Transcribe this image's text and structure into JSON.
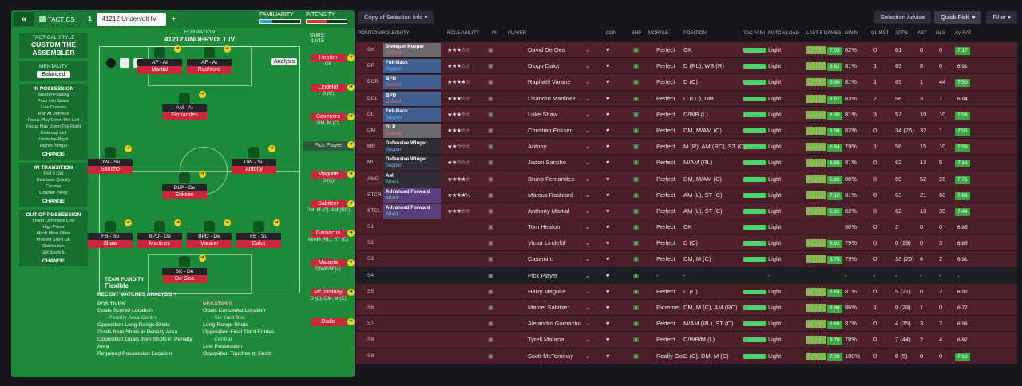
{
  "left": {
    "tactics_label": "TACTICS",
    "slot_number": "1",
    "formation_name_short": "41212 Undervolt IV",
    "familiarity_label": "FAMILIARITY",
    "intensity_label": "INTENSITY",
    "familiarity_level": 0.3,
    "intensity_level": 0.5,
    "tactical_style_label": "TACTICAL STYLE",
    "tactical_style_value": "CUSTOM THE ASSEMBLER",
    "mentality_label": "MENTALITY",
    "mentality_value": "Balanced",
    "in_possession_label": "IN POSSESSION",
    "in_possession_items": [
      "Shorter Passing",
      "Pass Into Space",
      "Low Crosses",
      "Run At Defence",
      "Focus Play Down The Left",
      "Focus Play Down The Right",
      "Underlap Left",
      "Underlap Right",
      "Higher Tempo"
    ],
    "in_transition_label": "IN TRANSITION",
    "in_transition_items": [
      "Roll It Out",
      "Distribute Quickly",
      "Counter",
      "Counter-Press"
    ],
    "out_possession_label": "OUT OF POSSESSION",
    "out_possession_items": [
      "Lower Defensive Line",
      "High Press",
      "Much More Often",
      "Prevent Short GK",
      "Distribution",
      "Get Stuck In"
    ],
    "change_label": "CHANGE",
    "formation_label": "FORMATION",
    "formation_name": "41212 UNDERVOLT IV",
    "subs_label": "SUBS:",
    "subs_value": "14/15",
    "analysis_label": "Analysis",
    "team_fluidity_label": "TEAM FLUIDITY",
    "team_fluidity_value": "Flexible",
    "recent_label": "RECENT MATCHES ANALYSIS ›",
    "positives_label": "POSITIVES",
    "positives": [
      "Goals Scored Location",
      "- Penalty Area Centre",
      "Opposition Long-Range Shots",
      "Goals from Shots in Penalty Area",
      "Opposition Goals from Shots in Penalty Area",
      "Regained Possession Location"
    ],
    "negatives_label": "NEGATIVES",
    "negatives": [
      "Goals Conceded Location",
      "- Six Yard Box",
      "Long-Range Shots",
      "Opposition Final Third Entries",
      "- Central",
      "Lost Possession",
      "Opposition Touches to Shots"
    ],
    "players": [
      {
        "role": "AF - At",
        "name": "Martial"
      },
      {
        "role": "AF - At",
        "name": "Rashford"
      },
      {
        "role": "AM - At",
        "name": "Fernandes"
      },
      {
        "role": "DW - Su",
        "name": "Sancho"
      },
      {
        "role": "DW - Su",
        "name": "Antony"
      },
      {
        "role": "DLP - De",
        "name": "Eriksen"
      },
      {
        "role": "FB - Su",
        "name": "Shaw"
      },
      {
        "role": "BPD - De",
        "name": "Martinez"
      },
      {
        "role": "BPD - De",
        "name": "Varane"
      },
      {
        "role": "FB - Su",
        "name": "Dalot"
      },
      {
        "role": "SK - De",
        "name": "De Gea"
      }
    ],
    "subs": [
      {
        "name": "Heaton",
        "pos": "GK"
      },
      {
        "name": "Lindelöf",
        "pos": "D (C)"
      },
      {
        "name": "Casemiro",
        "pos": "DM, M (C)"
      },
      {
        "name": "Pick Player",
        "pos": ""
      },
      {
        "name": "Maguire",
        "pos": "D (C)"
      },
      {
        "name": "Sabitzer",
        "pos": "DM, M (C), AM (RC)"
      },
      {
        "name": "Garnacho",
        "pos": "M/AM (RL), ST (C)"
      },
      {
        "name": "Malacia",
        "pos": "D/WB/M (L)"
      },
      {
        "name": "McTominay",
        "pos": "D (C), DM, M (C)"
      },
      {
        "name": "Diallo",
        "pos": ""
      }
    ]
  },
  "right": {
    "copy_label": "Copy of Selection Info",
    "selection_advice": "Selection Advice",
    "quick_pick": "Quick Pick",
    "filter": "Filter",
    "headers": [
      "POSITION/ROLE/DUTY",
      "ROLE ABILITY",
      "PI",
      "PLAYER",
      "CON",
      "SHP",
      "MORALE",
      "POSITION",
      "TAC FAMI",
      "MATCH LOAD",
      "LAST 5 GAMES",
      "GWIN",
      "GL MST",
      "APPS",
      "AST",
      "GLS",
      "AV RAT"
    ],
    "rows": [
      {
        "pos": "GK",
        "role": "Sweeper Keeper",
        "duty": "Defend",
        "stars": "★★★☆☆",
        "player": "David De Gea",
        "morale": "Perfect",
        "position": "GK",
        "load": "Light",
        "form": "7.03",
        "gwin": "82%",
        "glmst": "0",
        "apps": "61",
        "ast": "0",
        "gls": "0",
        "rat": "7.17",
        "color": "#6a6a6e"
      },
      {
        "pos": "DR",
        "role": "Full-Back",
        "duty": "Support",
        "stars": "★★★☆☆",
        "player": "Diogo Dalot",
        "morale": "Perfect",
        "position": "D (RL), WB (R)",
        "load": "Light",
        "form": "6.62",
        "gwin": "81%",
        "glmst": "1",
        "apps": "63",
        "ast": "8",
        "gls": "0",
        "rat": "6.91",
        "color": "#3f5f8f"
      },
      {
        "pos": "DCR",
        "role": "BPD",
        "duty": "Defend",
        "stars": "★★★★☆",
        "player": "Raphaël Varane",
        "morale": "Perfect",
        "position": "D (C)",
        "load": "Light",
        "form": "6.90",
        "gwin": "81%",
        "glmst": "1",
        "apps": "63",
        "ast": "1",
        "gls": "44",
        "rat": "7.50",
        "color": "#3f5f8f"
      },
      {
        "pos": "DCL",
        "role": "BPD",
        "duty": "Defend",
        "stars": "★★★☆☆",
        "player": "Lisandro Martínez",
        "morale": "Perfect",
        "position": "D (LC), DM",
        "load": "Light",
        "form": "6.62",
        "gwin": "83%",
        "glmst": "2",
        "apps": "58",
        "ast": "3",
        "gls": "7",
        "rat": "6.94",
        "color": "#3f5f8f"
      },
      {
        "pos": "DL",
        "role": "Full-Back",
        "duty": "Support",
        "stars": "★★★☆☆",
        "player": "Luke Shaw",
        "morale": "Perfect",
        "position": "D/WB (L)",
        "load": "Light",
        "form": "6.90",
        "gwin": "81%",
        "glmst": "3",
        "apps": "57",
        "ast": "10",
        "gls": "10",
        "rat": "7.08",
        "color": "#3f5f8f"
      },
      {
        "pos": "DM",
        "role": "DLP",
        "duty": "Defend",
        "stars": "★★★☆☆",
        "player": "Christian Eriksen",
        "morale": "Perfect",
        "position": "DM, M/AM (C)",
        "load": "Light",
        "form": "6.98",
        "gwin": "82%",
        "glmst": "0",
        "apps": "34 (26)",
        "ast": "32",
        "gls": "1",
        "rat": "7.05",
        "color": "#6a6a6e"
      },
      {
        "pos": "MR",
        "role": "Defensive Winger",
        "duty": "Support",
        "stars": "★★☆☆☆",
        "player": "Antony",
        "morale": "Perfect",
        "position": "M (R), AM (RC), ST (C)",
        "load": "Light",
        "form": "6.84",
        "gwin": "79%",
        "glmst": "1",
        "apps": "56",
        "ast": "15",
        "gls": "10",
        "rat": "7.09",
        "color": "#2e2e36"
      },
      {
        "pos": "ML",
        "role": "Defensive Winger",
        "duty": "Support",
        "stars": "★★☆☆☆",
        "player": "Jadon Sancho",
        "morale": "Perfect",
        "position": "M/AM (RL)",
        "load": "Light",
        "form": "6.86",
        "gwin": "81%",
        "glmst": "0",
        "apps": "62",
        "ast": "13",
        "gls": "5",
        "rat": "7.13",
        "color": "#2e2e36"
      },
      {
        "pos": "AMC",
        "role": "AM",
        "duty": "Attack",
        "stars": "★★★★☆",
        "player": "Bruno Fernandes",
        "morale": "Perfect",
        "position": "DM, M/AM (C)",
        "load": "Light",
        "form": "6.98",
        "gwin": "80%",
        "glmst": "0",
        "apps": "59",
        "ast": "52",
        "gls": "26",
        "rat": "7.71",
        "color": "#2e2e36"
      },
      {
        "pos": "STCR",
        "role": "Advanced Forward",
        "duty": "Attack",
        "stars": "★★★★½",
        "player": "Marcus Rashford",
        "morale": "Perfect",
        "position": "AM (L), ST (C)",
        "load": "Light",
        "form": "7.10",
        "gwin": "81%",
        "glmst": "0",
        "apps": "63",
        "ast": "21",
        "gls": "60",
        "rat": "7.88",
        "color": "#5a3f7f"
      },
      {
        "pos": "STCL",
        "role": "Advanced Forward",
        "duty": "Attack",
        "stars": "★★★☆☆",
        "player": "Anthony Martial",
        "morale": "Perfect",
        "position": "AM (L), ST (C)",
        "load": "Light",
        "form": "6.92",
        "gwin": "82%",
        "glmst": "0",
        "apps": "62",
        "ast": "13",
        "gls": "39",
        "rat": "7.44",
        "color": "#5a3f7f"
      },
      {
        "pos": "S1",
        "role": "",
        "duty": "",
        "stars": "",
        "player": "Tom Heaton",
        "morale": "Perfect",
        "position": "GK",
        "load": "Light",
        "form": "",
        "gwin": "50%",
        "glmst": "0",
        "apps": "2",
        "ast": "0",
        "gls": "0",
        "rat": "6.85",
        "color": ""
      },
      {
        "pos": "S2",
        "role": "",
        "duty": "",
        "stars": "",
        "player": "Victor Lindelöf",
        "morale": "Perfect",
        "position": "D (C)",
        "load": "Light",
        "form": "6.92",
        "gwin": "79%",
        "glmst": "0",
        "apps": "0 (19)",
        "ast": "0",
        "gls": "3",
        "rat": "6.85",
        "color": ""
      },
      {
        "pos": "S3",
        "role": "",
        "duty": "",
        "stars": "",
        "player": "Casemiro",
        "morale": "Perfect",
        "position": "DM, M (C)",
        "load": "Light",
        "form": "6.78",
        "gwin": "79%",
        "glmst": "0",
        "apps": "33 (25)",
        "ast": "4",
        "gls": "2",
        "rat": "6.91",
        "color": ""
      },
      {
        "pos": "S4",
        "role": "",
        "duty": "",
        "stars": "",
        "player": "Pick Player",
        "morale": "-",
        "position": "-",
        "load": "-",
        "form": "",
        "gwin": "-",
        "glmst": "-",
        "apps": "-",
        "ast": "-",
        "gls": "-",
        "rat": "-",
        "color": ""
      },
      {
        "pos": "S5",
        "role": "",
        "duty": "",
        "stars": "",
        "player": "Harry Maguire",
        "morale": "Perfect",
        "position": "D (C)",
        "load": "Light",
        "form": "6.84",
        "gwin": "81%",
        "glmst": "0",
        "apps": "5 (21)",
        "ast": "0",
        "gls": "2",
        "rat": "6.92",
        "color": ""
      },
      {
        "pos": "S6",
        "role": "",
        "duty": "",
        "stars": "",
        "player": "Marcel Sabitzer",
        "morale": "Extremel...",
        "position": "DM, M (C), AM (RC)",
        "load": "Light",
        "form": "6.98",
        "gwin": "86%",
        "glmst": "1",
        "apps": "0 (28)",
        "ast": "1",
        "gls": "0",
        "rat": "6.77",
        "color": ""
      },
      {
        "pos": "S7",
        "role": "",
        "duty": "",
        "stars": "",
        "player": "Alejandro Garnacho",
        "morale": "Perfect",
        "position": "M/AM (RL), ST (C)",
        "load": "Light",
        "form": "6.88",
        "gwin": "87%",
        "glmst": "0",
        "apps": "4 (35)",
        "ast": "3",
        "gls": "2",
        "rat": "6.96",
        "color": ""
      },
      {
        "pos": "S8",
        "role": "",
        "duty": "",
        "stars": "",
        "player": "Tyrell Malacia",
        "morale": "Perfect",
        "position": "D/WB/M (L)",
        "load": "Light",
        "form": "6.78",
        "gwin": "78%",
        "glmst": "0",
        "apps": "7 (44)",
        "ast": "2",
        "gls": "4",
        "rat": "6.87",
        "color": ""
      },
      {
        "pos": "S9",
        "role": "",
        "duty": "",
        "stars": "",
        "player": "Scott McTominay",
        "morale": "Really Go...",
        "position": "D (C), DM, M (C)",
        "load": "Light",
        "form": "7.08",
        "gwin": "100%",
        "glmst": "0",
        "apps": "0 (5)",
        "ast": "0",
        "gls": "0",
        "rat": "7.60",
        "color": ""
      }
    ]
  }
}
